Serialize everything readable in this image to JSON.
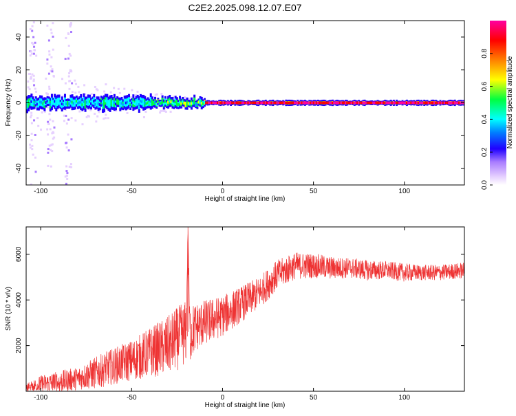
{
  "title": "C2E2.2025.098.12.07.E07",
  "chart_data": [
    {
      "type": "heatmap",
      "title": "C2E2.2025.098.12.07.E07",
      "xlabel": "Height of straight line (km)",
      "ylabel": "Frequency (Hz)",
      "xlim": [
        -108,
        133
      ],
      "ylim": [
        -50,
        50
      ],
      "x_ticks": [
        -100,
        -50,
        0,
        50,
        100
      ],
      "y_ticks": [
        -40,
        -20,
        0,
        20,
        40
      ],
      "grid": false,
      "colorbar": {
        "label": "Normalized spectral amplitude",
        "ticks": [
          0.0,
          0.2,
          0.4,
          0.6,
          0.8
        ],
        "range": [
          0,
          1
        ],
        "colormap": [
          "#e6d0ff",
          "#a97cff",
          "#2000ff",
          "#00a0ff",
          "#00ffff",
          "#00ff40",
          "#ffff00",
          "#ff8000",
          "#ff0000",
          "#ff00a0"
        ]
      },
      "main_band": {
        "frequency_hz": 0,
        "segments": [
          {
            "x_from": -108,
            "x_to": -40,
            "width_hz": 8,
            "peak_amplitude": 0.55
          },
          {
            "x_from": -40,
            "x_to": -10,
            "width_hz": 6,
            "peak_amplitude": 0.7
          },
          {
            "x_from": -10,
            "x_to": 133,
            "width_hz": 3,
            "peak_amplitude": 0.95
          }
        ]
      },
      "noise_columns_x": [
        -105,
        -95,
        -85
      ]
    },
    {
      "type": "line",
      "xlabel": "Height of straight line (km)",
      "ylabel": "SNR (10 * v/v)",
      "xlim": [
        -108,
        133
      ],
      "ylim": [
        0,
        7200
      ],
      "x_ticks": [
        -100,
        -50,
        0,
        50,
        100
      ],
      "y_ticks": [
        2000,
        4000,
        6000
      ],
      "grid": false,
      "series": [
        {
          "color": "#ee3333",
          "x": [
            -108,
            -100,
            -90,
            -80,
            -70,
            -60,
            -50,
            -40,
            -30,
            -25,
            -20,
            -19,
            -18,
            -15,
            -10,
            0,
            10,
            20,
            25,
            30,
            40,
            50,
            60,
            70,
            80,
            90,
            100,
            110,
            120,
            133
          ],
          "y": [
            150,
            300,
            400,
            550,
            800,
            1100,
            1350,
            1700,
            2000,
            2300,
            2600,
            7200,
            2500,
            2800,
            3000,
            3300,
            3800,
            4300,
            4700,
            5100,
            5500,
            5500,
            5400,
            5400,
            5300,
            5300,
            5200,
            5200,
            5200,
            5300
          ],
          "noise_amplitude": [
            200,
            400,
            500,
            500,
            700,
            800,
            900,
            1100,
            1300,
            1400,
            1400,
            0,
            1300,
            1100,
            1000,
            900,
            800,
            700,
            700,
            650,
            600,
            550,
            500,
            450,
            450,
            400,
            400,
            350,
            350,
            350
          ]
        }
      ]
    }
  ]
}
